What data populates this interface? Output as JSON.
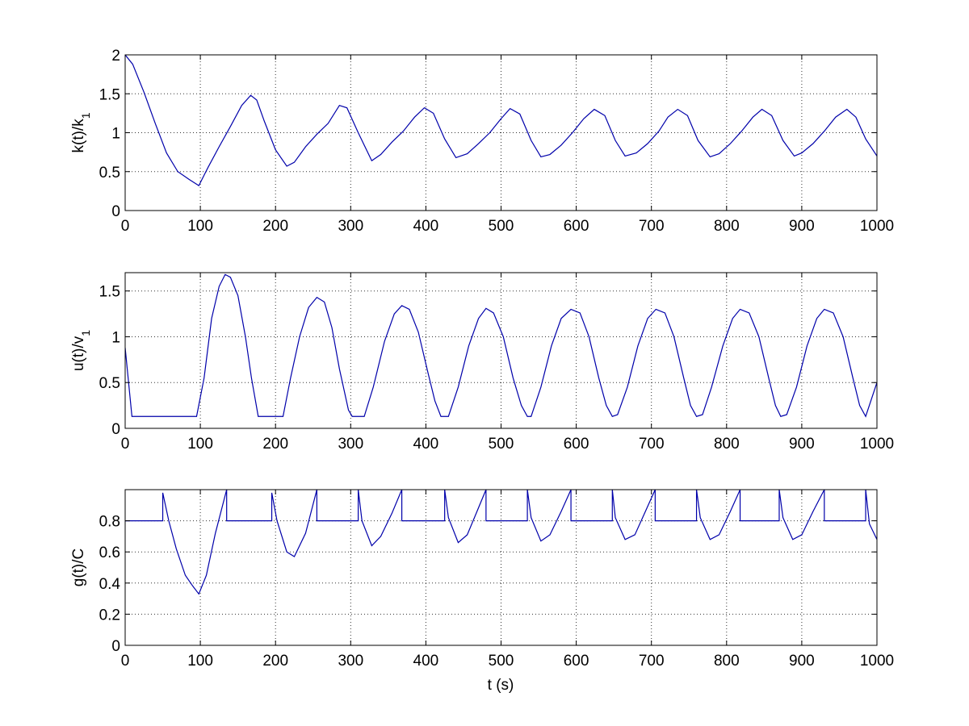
{
  "figure": {
    "line_color": "#0000aa",
    "grid_style": "dotted",
    "shared_xlabel": "t (s)"
  },
  "chart_data": [
    {
      "type": "line",
      "ylabel": "k(t)/k",
      "ylabel_subscript": "1",
      "xlim": [
        0,
        1000
      ],
      "ylim": [
        0,
        2
      ],
      "xticks": [
        0,
        100,
        200,
        300,
        400,
        500,
        600,
        700,
        800,
        900,
        1000
      ],
      "yticks": [
        0,
        0.5,
        1,
        1.5,
        2
      ],
      "grid": true,
      "series": [
        {
          "x": [
            0,
            10,
            25,
            40,
            55,
            70,
            85,
            98,
            110,
            125,
            140,
            155,
            167,
            175,
            185,
            200,
            215,
            225,
            240,
            255,
            270,
            285,
            295,
            310,
            328,
            340,
            355,
            370,
            385,
            398,
            410,
            425,
            440,
            455,
            470,
            485,
            500,
            512,
            525,
            540,
            553,
            565,
            580,
            595,
            610,
            624,
            638,
            652,
            665,
            680,
            695,
            710,
            722,
            735,
            748,
            762,
            778,
            790,
            805,
            820,
            835,
            847,
            860,
            875,
            890,
            900,
            915,
            930,
            945,
            960,
            972,
            985,
            1000
          ],
          "y": [
            2.0,
            1.88,
            1.52,
            1.12,
            0.74,
            0.5,
            0.4,
            0.32,
            0.55,
            0.82,
            1.08,
            1.35,
            1.48,
            1.42,
            1.15,
            0.78,
            0.57,
            0.62,
            0.82,
            0.98,
            1.12,
            1.35,
            1.32,
            1.0,
            0.64,
            0.72,
            0.88,
            1.02,
            1.2,
            1.32,
            1.25,
            0.92,
            0.68,
            0.73,
            0.86,
            1.0,
            1.18,
            1.31,
            1.24,
            0.9,
            0.69,
            0.72,
            0.84,
            1.0,
            1.18,
            1.3,
            1.22,
            0.9,
            0.7,
            0.74,
            0.86,
            1.02,
            1.2,
            1.3,
            1.22,
            0.9,
            0.69,
            0.73,
            0.86,
            1.02,
            1.2,
            1.3,
            1.22,
            0.9,
            0.7,
            0.74,
            0.86,
            1.02,
            1.2,
            1.3,
            1.2,
            0.92,
            0.7
          ]
        }
      ]
    },
    {
      "type": "line",
      "ylabel": "u(t)/v",
      "ylabel_subscript": "1",
      "xlim": [
        0,
        1000
      ],
      "ylim": [
        0,
        1.7
      ],
      "xticks": [
        0,
        100,
        200,
        300,
        400,
        500,
        600,
        700,
        800,
        900,
        1000
      ],
      "yticks": [
        0,
        0.5,
        1,
        1.5
      ],
      "grid": true,
      "series": [
        {
          "x": [
            0,
            9,
            95,
            105,
            115,
            125,
            133,
            140,
            150,
            160,
            168,
            177,
            210,
            220,
            232,
            244,
            255,
            265,
            275,
            285,
            297,
            302,
            318,
            330,
            345,
            358,
            368,
            378,
            390,
            403,
            412,
            420,
            430,
            443,
            457,
            470,
            480,
            490,
            503,
            516,
            527,
            535,
            540,
            553,
            567,
            580,
            593,
            605,
            617,
            630,
            640,
            648,
            655,
            668,
            682,
            695,
            706,
            718,
            730,
            743,
            752,
            760,
            768,
            780,
            795,
            808,
            818,
            830,
            843,
            856,
            865,
            872,
            880,
            893,
            907,
            920,
            930,
            942,
            955,
            968,
            977,
            985,
            1000
          ],
          "y": [
            0.88,
            0.13,
            0.13,
            0.55,
            1.2,
            1.55,
            1.68,
            1.65,
            1.45,
            1.0,
            0.55,
            0.13,
            0.13,
            0.55,
            1.0,
            1.32,
            1.43,
            1.38,
            1.1,
            0.65,
            0.2,
            0.13,
            0.13,
            0.45,
            0.95,
            1.25,
            1.34,
            1.3,
            1.05,
            0.6,
            0.3,
            0.13,
            0.13,
            0.45,
            0.9,
            1.2,
            1.31,
            1.26,
            1.0,
            0.55,
            0.25,
            0.13,
            0.13,
            0.45,
            0.9,
            1.2,
            1.3,
            1.26,
            1.0,
            0.55,
            0.25,
            0.13,
            0.15,
            0.45,
            0.9,
            1.2,
            1.3,
            1.26,
            1.0,
            0.55,
            0.25,
            0.13,
            0.15,
            0.45,
            0.9,
            1.2,
            1.3,
            1.26,
            1.0,
            0.55,
            0.25,
            0.13,
            0.15,
            0.45,
            0.9,
            1.2,
            1.3,
            1.26,
            1.0,
            0.55,
            0.25,
            0.13,
            0.5
          ]
        }
      ]
    },
    {
      "type": "line",
      "ylabel": "g(t)/C",
      "ylabel_subscript": "",
      "xlabel": "t (s)",
      "xlim": [
        0,
        1000
      ],
      "ylim": [
        0,
        1
      ],
      "xticks": [
        0,
        100,
        200,
        300,
        400,
        500,
        600,
        700,
        800,
        900,
        1000
      ],
      "yticks": [
        0,
        0.2,
        0.4,
        0.6,
        0.8
      ],
      "grid": true,
      "series": [
        {
          "x": [
            0,
            50,
            50,
            58,
            68,
            80,
            90,
            98,
            108,
            120,
            135,
            135,
            195,
            195,
            202,
            215,
            225,
            240,
            255,
            255,
            310,
            310,
            315,
            328,
            340,
            355,
            368,
            368,
            425,
            425,
            430,
            443,
            455,
            468,
            480,
            480,
            535,
            535,
            540,
            553,
            565,
            580,
            593,
            593,
            648,
            648,
            652,
            665,
            678,
            692,
            705,
            705,
            760,
            760,
            765,
            778,
            790,
            805,
            818,
            818,
            870,
            870,
            875,
            888,
            900,
            915,
            930,
            930,
            985,
            985,
            990,
            1000
          ],
          "y": [
            0.8,
            0.8,
            0.98,
            0.8,
            0.62,
            0.45,
            0.38,
            0.33,
            0.45,
            0.72,
            1.0,
            0.8,
            0.8,
            0.98,
            0.8,
            0.6,
            0.57,
            0.72,
            1.0,
            0.8,
            0.8,
            1.0,
            0.8,
            0.64,
            0.7,
            0.85,
            1.0,
            0.8,
            0.8,
            1.0,
            0.82,
            0.66,
            0.71,
            0.86,
            1.0,
            0.8,
            0.8,
            1.0,
            0.82,
            0.67,
            0.71,
            0.86,
            1.0,
            0.8,
            0.8,
            1.0,
            0.82,
            0.68,
            0.71,
            0.86,
            1.0,
            0.8,
            0.8,
            1.0,
            0.82,
            0.68,
            0.71,
            0.86,
            1.0,
            0.8,
            0.8,
            1.0,
            0.82,
            0.68,
            0.71,
            0.86,
            1.0,
            0.8,
            0.8,
            1.0,
            0.78,
            0.68
          ]
        }
      ]
    }
  ]
}
